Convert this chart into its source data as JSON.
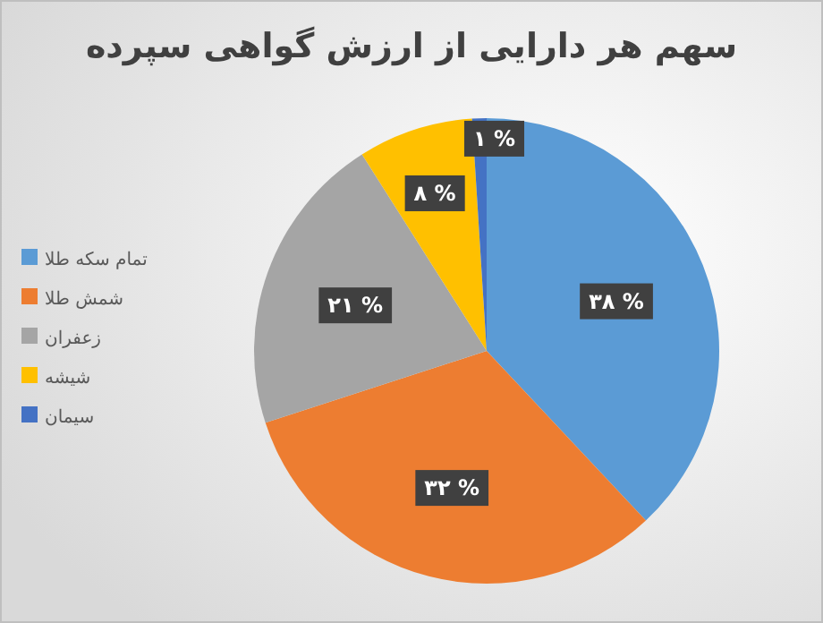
{
  "chart_data": {
    "type": "pie",
    "title": "سهم هر دارایی از ارزش گواهی سپرده",
    "categories": [
      "تمام سکه طلا",
      "شمش طلا",
      "زعفران",
      "شیشه",
      "سیمان"
    ],
    "values": [
      38,
      32,
      21,
      8,
      1
    ],
    "colors": [
      "#5b9bd5",
      "#ed7d31",
      "#a5a5a5",
      "#ffc000",
      "#4472c4"
    ],
    "value_labels": [
      "۳۸ %",
      "۳۲ %",
      "۲۱ %",
      "۸ %",
      "۱ %"
    ],
    "legend": "left"
  }
}
